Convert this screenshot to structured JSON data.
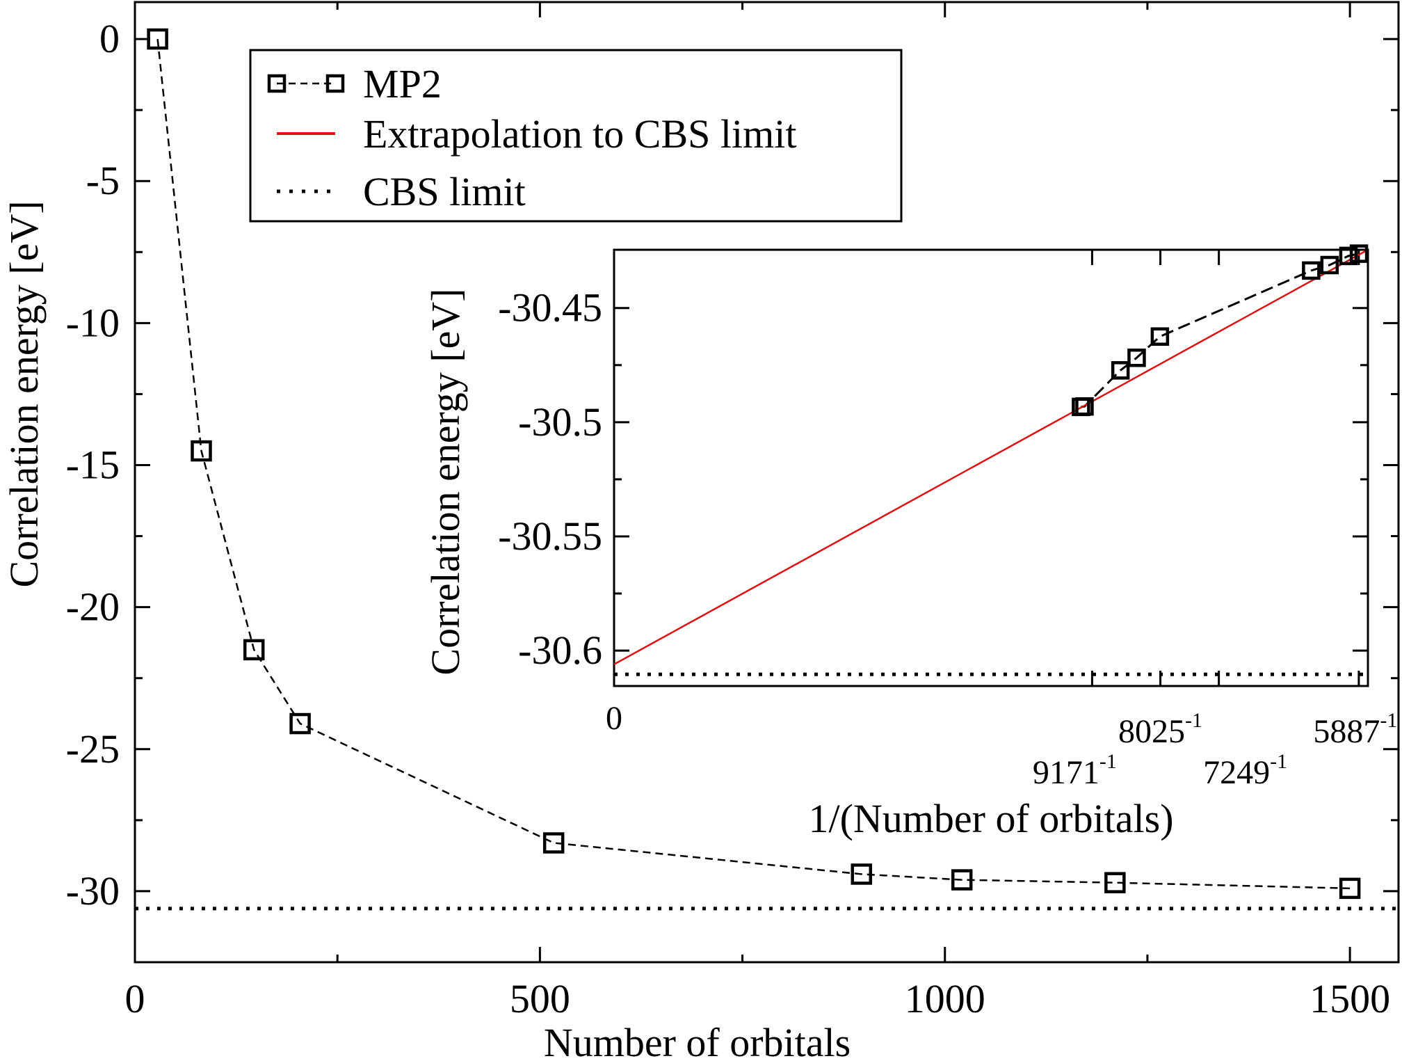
{
  "chart_data": [
    {
      "type": "line",
      "xlabel": "Number of orbitals",
      "ylabel": "Correlation energy [eV]",
      "xlim": [
        0,
        1560
      ],
      "ylim": [
        -32.5,
        1.3
      ],
      "xticks": [
        0,
        500,
        1000,
        1500
      ],
      "xtick_labels": [
        "0",
        "500",
        "1000",
        "1500"
      ],
      "yticks": [
        0,
        -5,
        -10,
        -15,
        -20,
        -25,
        -30
      ],
      "ytick_labels": [
        "0",
        "-5",
        "-10",
        "-15",
        "-20",
        "-25",
        "-30"
      ],
      "grid": false,
      "legend_position": "top-center",
      "series": [
        {
          "name": "MP2",
          "style": "dashed-with-square-markers",
          "color": "#000000",
          "x": [
            28,
            82,
            147,
            204,
            517,
            897,
            1021,
            1210,
            1500
          ],
          "y": [
            0.0,
            -14.5,
            -21.5,
            -24.1,
            -28.3,
            -29.4,
            -29.6,
            -29.7,
            -29.9
          ]
        },
        {
          "name": "Extrapolation to CBS limit",
          "style": "solid",
          "color": "#dd1111",
          "x": [],
          "y": []
        },
        {
          "name": "CBS limit",
          "style": "dotted",
          "color": "#000000",
          "x": [
            0,
            1560
          ],
          "y": [
            -30.61,
            -30.61
          ]
        }
      ]
    },
    {
      "type": "line",
      "xlabel": "1/(Number of orbitals)",
      "ylabel": "Correlation energy [eV]",
      "xlim": [
        0,
        0.00017195
      ],
      "ylim": [
        -30.6155,
        -30.4245
      ],
      "xtick_labels": [
        {
          "text": "0",
          "x": 0
        },
        {
          "text": "9171",
          "exp": "-1",
          "x": 0.00010904
        },
        {
          "text": "8025",
          "exp": "-1",
          "x": 0.00012461
        },
        {
          "text": "7249",
          "exp": "-1",
          "x": 0.00013795
        },
        {
          "text": "5887",
          "exp": "-1",
          "x": 0.00016987
        }
      ],
      "yticks": [
        -30.45,
        -30.5,
        -30.55,
        -30.6
      ],
      "ytick_labels": [
        "-30.45",
        "-30.5",
        "-30.55",
        "-30.6"
      ],
      "grid": false,
      "series": [
        {
          "name": "MP2",
          "style": "dashed-with-square-markers",
          "color": "#000000",
          "x": [
            0.0001065,
            0.0001073,
            0.0001155,
            0.0001192,
            0.0001245,
            0.000159,
            0.0001632,
            0.0001675,
            0.0001699
          ],
          "y": [
            -30.4933,
            -30.4931,
            -30.4773,
            -30.4718,
            -30.4625,
            -30.4336,
            -30.4312,
            -30.4272,
            -30.4262
          ]
        },
        {
          "name": "Extrapolation to CBS limit",
          "style": "solid",
          "color": "#dd1111",
          "x": [
            0,
            0.00017195
          ],
          "y": [
            -30.606,
            -30.4245
          ]
        },
        {
          "name": "CBS limit",
          "style": "dotted",
          "color": "#000000",
          "x": [
            0,
            0.00017195
          ],
          "y": [
            -30.6104,
            -30.6104
          ]
        }
      ]
    }
  ]
}
